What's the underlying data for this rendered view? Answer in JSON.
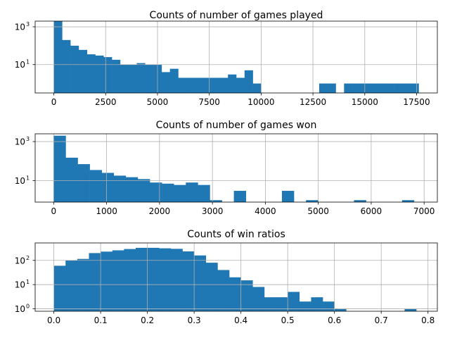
{
  "chart_data": [
    {
      "type": "bar",
      "title": "Counts of number of games played",
      "yscale": "log",
      "grid": true,
      "bar_color": "#1f77b4",
      "xlim": [
        -900,
        18500
      ],
      "ylim_exp": [
        -0.5,
        3.3
      ],
      "y_ticks": [
        {
          "base": "10",
          "exp": "3",
          "value": 1000
        },
        {
          "base": "10",
          "exp": "1",
          "value": 10
        }
      ],
      "x_ticks": [
        "0",
        "2500",
        "5000",
        "7500",
        "10000",
        "12500",
        "15000",
        "17500"
      ],
      "bin_edges": [
        0,
        400,
        800,
        1200,
        1600,
        2000,
        2400,
        2800,
        3200,
        3600,
        4000,
        4400,
        4800,
        5200,
        5600,
        6000,
        6400,
        6800,
        7200,
        7600,
        8000,
        8400,
        8800,
        9200,
        9600,
        10000,
        10400,
        10800,
        11200,
        11600,
        12000,
        12400,
        12800,
        13200,
        13600,
        14000,
        14400,
        14800,
        15200,
        15600,
        16000,
        16400,
        16800,
        17200,
        17600
      ],
      "values": [
        2000,
        200,
        100,
        60,
        35,
        30,
        25,
        18,
        10,
        10,
        12,
        10,
        10,
        4,
        6,
        2,
        2,
        2,
        2,
        2,
        2,
        3,
        2,
        5,
        1,
        0,
        0,
        0,
        0,
        0,
        0,
        0,
        1,
        1,
        0,
        1,
        1,
        1,
        1,
        1,
        1,
        1,
        1,
        1
      ]
    },
    {
      "type": "bar",
      "title": "Counts of number of games won",
      "yscale": "log",
      "grid": true,
      "bar_color": "#1f77b4",
      "xlim": [
        -350,
        7250
      ],
      "ylim_exp": [
        -0.1,
        3.4
      ],
      "y_ticks": [
        {
          "base": "10",
          "exp": "3",
          "value": 1000
        },
        {
          "base": "10",
          "exp": "1",
          "value": 10
        }
      ],
      "x_ticks": [
        "0",
        "1000",
        "2000",
        "3000",
        "4000",
        "5000",
        "6000",
        "7000"
      ],
      "bin_edges": [
        0,
        227,
        454,
        681,
        908,
        1135,
        1362,
        1589,
        1816,
        2043,
        2270,
        2497,
        2724,
        2951,
        3178,
        3405,
        3632,
        3859,
        4086,
        4313,
        4540,
        4767,
        4994,
        5221,
        5448,
        5675,
        5902,
        6129,
        6356,
        6583,
        6810,
        7037
      ],
      "values": [
        2000,
        150,
        70,
        35,
        25,
        18,
        15,
        12,
        8,
        7,
        6,
        8,
        6,
        1,
        0,
        3,
        0,
        0,
        0,
        3,
        0,
        1,
        0,
        0,
        0,
        1,
        0,
        0,
        0,
        1,
        0
      ]
    },
    {
      "type": "bar",
      "title": "Counts of win ratios",
      "yscale": "log",
      "grid": true,
      "bar_color": "#1f77b4",
      "xlim": [
        -0.04,
        0.82
      ],
      "ylim_exp": [
        -0.1,
        2.72
      ],
      "y_ticks": [
        {
          "base": "10",
          "exp": "2",
          "value": 100
        },
        {
          "base": "10",
          "exp": "1",
          "value": 10
        },
        {
          "base": "10",
          "exp": "0",
          "value": 1
        }
      ],
      "x_ticks": [
        "0.0",
        "0.1",
        "0.2",
        "0.3",
        "0.4",
        "0.5",
        "0.6",
        "0.7",
        "0.8"
      ],
      "bin_edges": [
        0.0,
        0.025,
        0.05,
        0.075,
        0.1,
        0.125,
        0.15,
        0.175,
        0.2,
        0.225,
        0.25,
        0.275,
        0.3,
        0.325,
        0.35,
        0.375,
        0.4,
        0.425,
        0.45,
        0.475,
        0.5,
        0.525,
        0.55,
        0.575,
        0.6,
        0.625,
        0.65,
        0.675,
        0.7,
        0.725,
        0.75,
        0.775,
        0.8
      ],
      "values": [
        60,
        100,
        115,
        200,
        230,
        260,
        295,
        330,
        330,
        315,
        300,
        235,
        160,
        80,
        40,
        20,
        15,
        8,
        3,
        3,
        5,
        2,
        3,
        2,
        1,
        0,
        0,
        0,
        0,
        0,
        1,
        0
      ]
    }
  ]
}
